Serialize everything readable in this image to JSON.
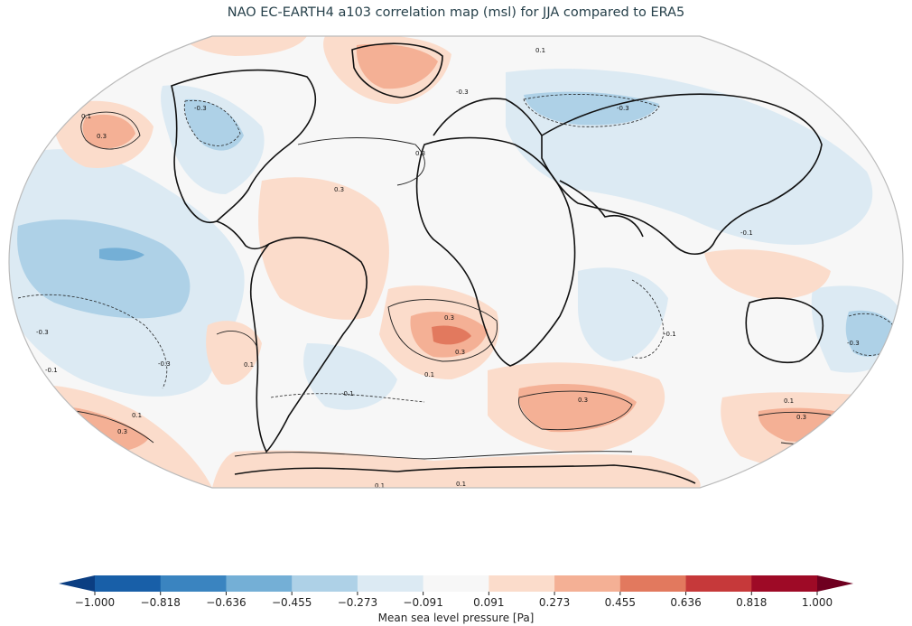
{
  "title": "NAO EC-EARTH4 a103 correlation map (msl) for JJA compared to ERA5",
  "colorbar": {
    "label": "Mean sea level pressure [Pa]",
    "ticks": [
      "−1.000",
      "−0.818",
      "−0.636",
      "−0.455",
      "−0.273",
      "−0.091",
      "0.091",
      "0.273",
      "0.455",
      "0.636",
      "0.818",
      "1.000"
    ],
    "colors": [
      "#185fa8",
      "#3a84c0",
      "#74afd6",
      "#aed1e7",
      "#dceaf3",
      "#f7f7f7",
      "#fbdccb",
      "#f4b095",
      "#e2795e",
      "#c6393a",
      "#9e0a26"
    ],
    "under_color": "#0b3e82",
    "over_color": "#6f0020"
  },
  "colors": {
    "ocean_neutral": "#f7f7f7",
    "coastline": "#111111",
    "contour": "#222222",
    "map_border": "#bbbbbb"
  },
  "contour_labels": [
    "0.1",
    "0.3",
    "-0.1",
    "-0.3"
  ]
}
